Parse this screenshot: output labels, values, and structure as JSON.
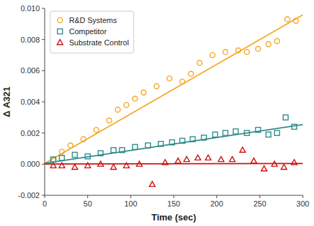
{
  "chart_data": {
    "type": "scatter",
    "xlabel": "Time (sec)",
    "ylabel": "Δ A321",
    "xlim": [
      0,
      300
    ],
    "ylim": [
      -0.002,
      0.01
    ],
    "xticks": [
      0,
      50,
      100,
      150,
      200,
      250,
      300
    ],
    "yticks": [
      -0.002,
      {
        "value": 0,
        "label": "0.000"
      },
      0.002,
      0.004,
      0.006,
      0.008,
      {
        "value": 0.01,
        "label": "0.010"
      }
    ],
    "grid": false,
    "legend": "upper left",
    "series": [
      {
        "name": "R&D Systems",
        "type": "scatter",
        "marker": "circle",
        "color": "#F5A623",
        "x": [
          10,
          20,
          30,
          45,
          60,
          75,
          85,
          95,
          105,
          115,
          130,
          145,
          160,
          170,
          180,
          195,
          210,
          225,
          235,
          248,
          260,
          270,
          282,
          292
        ],
        "values": [
          0.0003,
          0.0008,
          0.0012,
          0.0016,
          0.0022,
          0.0028,
          0.0035,
          0.0038,
          0.0042,
          0.0046,
          0.005,
          0.0055,
          0.0053,
          0.0058,
          0.0065,
          0.007,
          0.0072,
          0.0073,
          0.0072,
          0.0074,
          0.0077,
          0.0079,
          0.0093,
          0.0092
        ]
      },
      {
        "type": "line",
        "line_style": "solid",
        "color": "#F5A623",
        "x": [
          0,
          300
        ],
        "values": [
          5e-05,
          0.00959
        ]
      },
      {
        "name": "Competitor",
        "type": "scatter",
        "marker": "square",
        "color": "#2E8B8B",
        "x": [
          10,
          20,
          35,
          50,
          65,
          80,
          90,
          105,
          120,
          135,
          148,
          160,
          172,
          185,
          198,
          210,
          222,
          235,
          248,
          260,
          270,
          280,
          290
        ],
        "values": [
          0.0003,
          0.0004,
          0.0006,
          0.0005,
          0.0007,
          0.0009,
          0.0009,
          0.0011,
          0.0012,
          0.0013,
          0.0014,
          0.0015,
          0.0016,
          0.0017,
          0.0019,
          0.002,
          0.0021,
          0.002,
          0.0022,
          0.0019,
          0.002,
          0.003,
          0.0024
        ]
      },
      {
        "type": "line",
        "line_style": "solid",
        "color": "#2E8B8B",
        "x": [
          0,
          300
        ],
        "values": [
          5e-05,
          0.00254
        ]
      },
      {
        "name": "Substrate Control",
        "type": "scatter",
        "marker": "triangle",
        "color": "#CC1111",
        "x": [
          10,
          20,
          35,
          50,
          65,
          80,
          95,
          110,
          125,
          140,
          155,
          165,
          178,
          190,
          205,
          218,
          230,
          243,
          255,
          267,
          278,
          290
        ],
        "values": [
          -0.0001,
          -0.0001,
          -0.0002,
          -0.0001,
          0.0,
          -0.0002,
          -0.0001,
          0.0,
          -0.0013,
          0.0001,
          0.0002,
          0.0003,
          0.0004,
          0.0004,
          0.0003,
          0.0003,
          0.0009,
          0.0002,
          -0.0003,
          0.0,
          -0.0002,
          0.0001
        ]
      },
      {
        "type": "line",
        "line_style": "solid",
        "color": "#CC1111",
        "x": [
          0,
          300
        ],
        "values": [
          1e-05,
          4e-05
        ]
      }
    ]
  }
}
